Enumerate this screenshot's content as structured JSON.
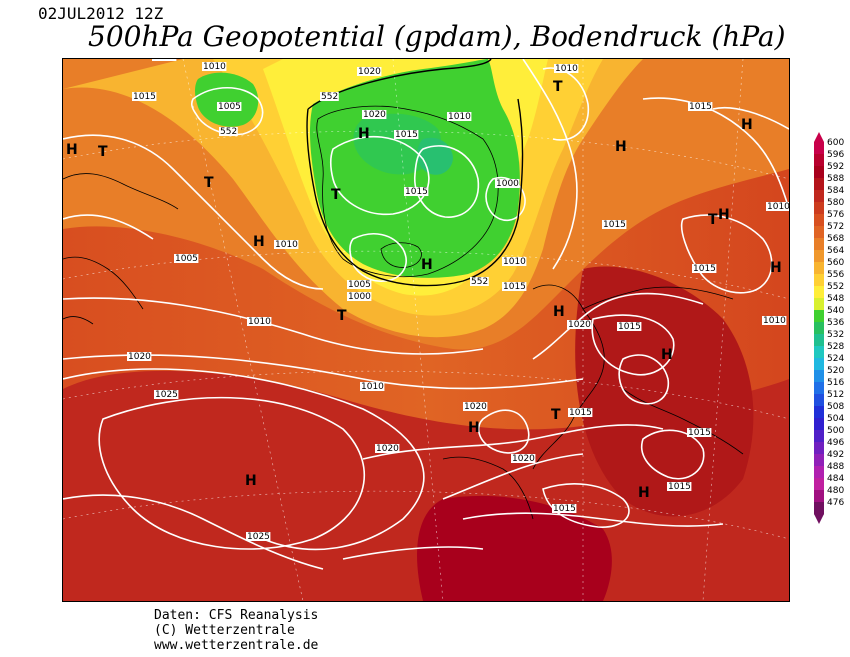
{
  "header": {
    "date": "02JUL2012 12Z",
    "title": "500hPa Geopotential (gpdam), Bodendruck (hPa)"
  },
  "credits": {
    "line1": "Daten: CFS Reanalysis",
    "line2": "(C) Wetterzentrale",
    "line3": "www.wetterzentrale.de"
  },
  "legend": {
    "values": [
      "600",
      "596",
      "592",
      "588",
      "584",
      "580",
      "576",
      "572",
      "568",
      "564",
      "560",
      "556",
      "552",
      "548",
      "540",
      "536",
      "532",
      "528",
      "524",
      "520",
      "516",
      "512",
      "508",
      "504",
      "500",
      "496",
      "492",
      "488",
      "484",
      "480",
      "476"
    ],
    "colors": [
      "#c8004a",
      "#b8002e",
      "#a8001c",
      "#b4141a",
      "#c0281e",
      "#cc3c1e",
      "#d85020",
      "#e06424",
      "#e87e28",
      "#f0982c",
      "#f8b430",
      "#ffd034",
      "#ffee3a",
      "#d8f030",
      "#40d030",
      "#28c060",
      "#20c090",
      "#20c8c0",
      "#20b8e0",
      "#2090e8",
      "#2070e8",
      "#2050e0",
      "#2030d8",
      "#3020d0",
      "#5020c8",
      "#7020c0",
      "#9020b8",
      "#b020b0",
      "#c020a0",
      "#a01080",
      "#701060"
    ]
  },
  "map": {
    "isobar_labels": [
      "1010",
      "1010",
      "1015",
      "1005",
      "1020",
      "1020",
      "1015",
      "1010",
      "1010",
      "1015",
      "1015",
      "1005",
      "1000",
      "1015",
      "1010",
      "1015",
      "1010",
      "1005",
      "1000",
      "1010",
      "1015",
      "1010",
      "1020",
      "1020",
      "1015",
      "1010",
      "1015",
      "1020",
      "1015",
      "1015",
      "1010",
      "1025",
      "1020",
      "1020",
      "1015",
      "1025",
      "552",
      "552",
      "552"
    ],
    "pressure_centers": [
      "H",
      "T",
      "H",
      "T",
      "H",
      "T",
      "H",
      "T",
      "H",
      "H",
      "T",
      "H",
      "T",
      "H",
      "H",
      "H",
      "T",
      "H",
      "H",
      "H"
    ]
  }
}
